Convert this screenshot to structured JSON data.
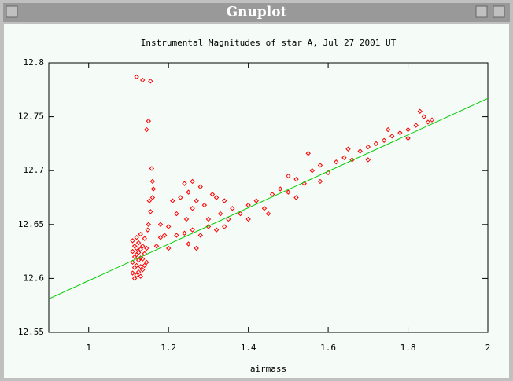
{
  "window": {
    "title": "Gnuplot"
  },
  "chart_data": {
    "type": "scatter",
    "title": "Instrumental Magnitudes of star A, Jul 27 2001 UT",
    "x_label": "airmass",
    "xlim": [
      0.9,
      2
    ],
    "xticks": [
      1,
      1.2,
      1.4,
      1.6,
      1.8,
      2
    ],
    "ylim": [
      12.55,
      12.8
    ],
    "yticks": [
      12.55,
      12.6,
      12.65,
      12.7,
      12.75,
      12.8
    ],
    "grid": false,
    "series": [
      {
        "style": "points",
        "marker": "diamond",
        "color": "#ff0000",
        "x": [
          1.11,
          1.11,
          1.11,
          1.11,
          1.115,
          1.115,
          1.115,
          1.115,
          1.12,
          1.12,
          1.12,
          1.12,
          1.12,
          1.125,
          1.125,
          1.125,
          1.125,
          1.13,
          1.13,
          1.13,
          1.13,
          1.13,
          1.135,
          1.135,
          1.135,
          1.14,
          1.14,
          1.14,
          1.145,
          1.145,
          1.12,
          1.135,
          1.155,
          1.15,
          1.145,
          1.15,
          1.155,
          1.16,
          1.16,
          1.158,
          1.152,
          1.148,
          1.162,
          1.18,
          1.2,
          1.22,
          1.23,
          1.24,
          1.25,
          1.26,
          1.27,
          1.28,
          1.29,
          1.3,
          1.32,
          1.34,
          1.33,
          1.36,
          1.26,
          1.21,
          1.19,
          1.245,
          1.31,
          1.17,
          1.18,
          1.2,
          1.22,
          1.24,
          1.26,
          1.28,
          1.3,
          1.32,
          1.35,
          1.38,
          1.4,
          1.42,
          1.44,
          1.46,
          1.48,
          1.5,
          1.52,
          1.54,
          1.55,
          1.56,
          1.58,
          1.6,
          1.62,
          1.64,
          1.66,
          1.68,
          1.7,
          1.72,
          1.74,
          1.76,
          1.78,
          1.8,
          1.82,
          1.83,
          1.84,
          1.85,
          1.86,
          1.4,
          1.5,
          1.25,
          1.27,
          1.34,
          1.45,
          1.52,
          1.58,
          1.65,
          1.7,
          1.75,
          1.8
        ],
        "values": [
          12.605,
          12.615,
          12.625,
          12.635,
          12.6,
          12.61,
          12.62,
          12.63,
          12.603,
          12.612,
          12.622,
          12.628,
          12.638,
          12.606,
          12.617,
          12.624,
          12.633,
          12.602,
          12.611,
          12.619,
          12.627,
          12.641,
          12.608,
          12.618,
          12.63,
          12.612,
          12.623,
          12.637,
          12.615,
          12.628,
          12.787,
          12.784,
          12.783,
          12.746,
          12.738,
          12.65,
          12.662,
          12.675,
          12.69,
          12.702,
          12.672,
          12.645,
          12.683,
          12.65,
          12.648,
          12.66,
          12.675,
          12.688,
          12.68,
          12.69,
          12.672,
          12.685,
          12.668,
          12.655,
          12.675,
          12.672,
          12.66,
          12.665,
          12.665,
          12.672,
          12.64,
          12.655,
          12.678,
          12.63,
          12.638,
          12.628,
          12.64,
          12.642,
          12.645,
          12.64,
          12.648,
          12.645,
          12.655,
          12.66,
          12.668,
          12.672,
          12.665,
          12.678,
          12.683,
          12.68,
          12.692,
          12.688,
          12.716,
          12.7,
          12.705,
          12.698,
          12.708,
          12.712,
          12.71,
          12.718,
          12.722,
          12.725,
          12.728,
          12.732,
          12.735,
          12.738,
          12.742,
          12.755,
          12.75,
          12.745,
          12.747,
          12.655,
          12.695,
          12.632,
          12.628,
          12.648,
          12.66,
          12.675,
          12.69,
          12.72,
          12.71,
          12.738,
          12.73
        ]
      },
      {
        "style": "lines",
        "color": "#00cc00",
        "x": [
          0.9,
          2
        ],
        "values": [
          12.581,
          12.767
        ]
      }
    ]
  }
}
